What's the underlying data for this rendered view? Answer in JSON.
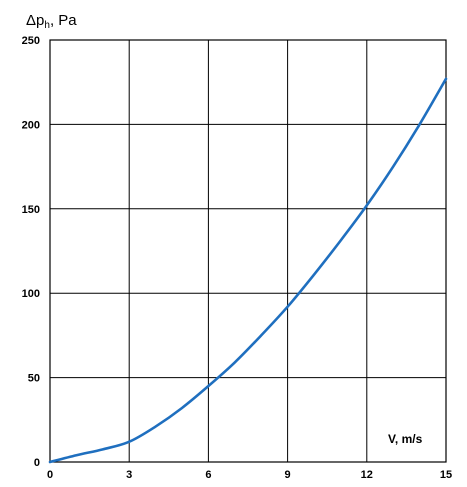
{
  "chart_data": {
    "type": "line",
    "title": "",
    "ylabel_main": "Δp",
    "ylabel_sub": "h",
    "ylabel_unit": ", Pa",
    "xlabel": "V, m/s",
    "xlim": [
      0,
      15
    ],
    "ylim": [
      0,
      250
    ],
    "x_ticks": [
      0,
      3,
      6,
      9,
      12,
      15
    ],
    "y_ticks": [
      0,
      50,
      100,
      150,
      200,
      250
    ],
    "x_tick_labels": [
      "0",
      "3",
      "6",
      "9",
      "12",
      "15"
    ],
    "y_tick_labels": [
      "0",
      "50",
      "100",
      "150",
      "200",
      "250"
    ],
    "grid": true,
    "series": [
      {
        "color": "#1f6fbf",
        "x": [
          0,
          1,
          2,
          3,
          4,
          5,
          6,
          7,
          8,
          9,
          10,
          11,
          12,
          13,
          14,
          15
        ],
        "y": [
          0,
          4,
          7.5,
          12,
          21,
          32,
          45,
          59,
          75,
          92,
          111,
          131,
          152,
          175,
          200,
          227
        ]
      }
    ]
  }
}
